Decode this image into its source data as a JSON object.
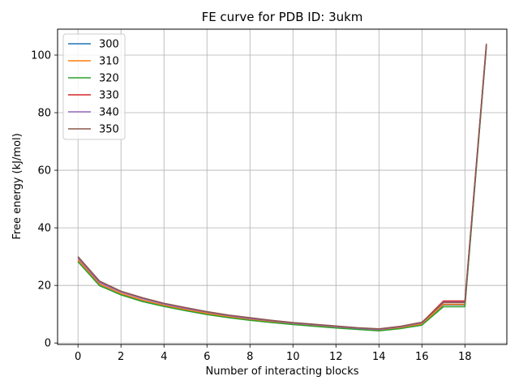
{
  "chart_data": {
    "type": "line",
    "title": "FE curve for PDB ID: 3ukm",
    "xlabel": "Number of interacting blocks",
    "ylabel": "Free energy (kJ/mol)",
    "xlim": [
      -0.95,
      19.95
    ],
    "ylim": [
      -0.5,
      109
    ],
    "xticks": [
      0,
      2,
      4,
      6,
      8,
      10,
      12,
      14,
      16,
      18
    ],
    "yticks": [
      0,
      20,
      40,
      60,
      80,
      100
    ],
    "grid": true,
    "legend_position": "top-left",
    "x": [
      0,
      1,
      2,
      3,
      4,
      5,
      6,
      7,
      8,
      9,
      10,
      11,
      12,
      13,
      14,
      15,
      16,
      17,
      18,
      19
    ],
    "series": [
      {
        "name": "300",
        "color": "#1f77b4",
        "values": [
          28.8,
          20.4,
          17.1,
          14.8,
          13.0,
          11.5,
          10.2,
          9.0,
          8.1,
          7.3,
          6.6,
          6.0,
          5.4,
          4.9,
          4.4,
          5.2,
          6.5,
          13.2,
          13.2,
          103.2
        ]
      },
      {
        "name": "310",
        "color": "#ff7f0e",
        "values": [
          28.9,
          20.5,
          17.2,
          14.9,
          13.1,
          11.6,
          10.3,
          9.1,
          8.2,
          7.4,
          6.7,
          6.1,
          5.5,
          5.0,
          4.5,
          5.3,
          6.6,
          13.4,
          13.4,
          103.4
        ]
      },
      {
        "name": "320",
        "color": "#2ca02c",
        "values": [
          28.2,
          19.9,
          16.7,
          14.4,
          12.7,
          11.2,
          9.9,
          8.8,
          7.9,
          7.1,
          6.4,
          5.8,
          5.2,
          4.7,
          4.2,
          5.0,
          6.2,
          12.6,
          12.6,
          103.0
        ]
      },
      {
        "name": "330",
        "color": "#d62728",
        "values": [
          29.6,
          21.2,
          17.8,
          15.5,
          13.6,
          12.1,
          10.8,
          9.6,
          8.6,
          7.8,
          7.0,
          6.4,
          5.8,
          5.2,
          4.8,
          5.7,
          7.1,
          14.6,
          14.6,
          103.8
        ]
      },
      {
        "name": "340",
        "color": "#9467bd",
        "values": [
          29.5,
          21.0,
          17.7,
          15.4,
          13.5,
          12.0,
          10.7,
          9.5,
          8.5,
          7.7,
          6.9,
          6.3,
          5.7,
          5.1,
          4.7,
          5.6,
          7.0,
          14.2,
          14.2,
          103.6
        ]
      },
      {
        "name": "350",
        "color": "#8c564b",
        "values": [
          30.0,
          21.5,
          18.0,
          15.7,
          13.8,
          12.3,
          10.9,
          9.7,
          8.8,
          7.9,
          7.1,
          6.5,
          5.9,
          5.3,
          4.9,
          5.8,
          7.2,
          14.0,
          14.0,
          104.0
        ]
      }
    ]
  }
}
